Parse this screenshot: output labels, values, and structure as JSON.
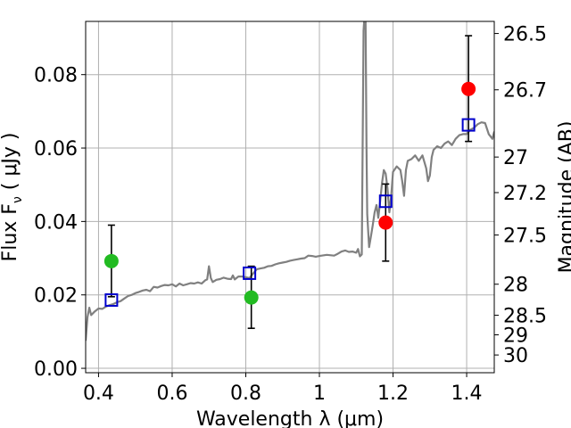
{
  "chart_data": {
    "type": "scatter",
    "xlabel": "Wavelength  λ (μm)",
    "ylabel_left": "Flux  F",
    "ylabel_left_sub": "ν",
    "ylabel_left_unit": "  ( μJy )",
    "ylabel_right": "Magnitude (AB)",
    "xlim": [
      0.365,
      1.475
    ],
    "ylim": [
      -0.0012,
      0.0945
    ],
    "x_ticks": [
      {
        "value": 0.4,
        "label": "0.4"
      },
      {
        "value": 0.6,
        "label": "0.6"
      },
      {
        "value": 0.8,
        "label": "0.8"
      },
      {
        "value": 1.0,
        "label": "1"
      },
      {
        "value": 1.2,
        "label": "1.2"
      },
      {
        "value": 1.4,
        "label": "1.4"
      }
    ],
    "y_ticks": [
      {
        "value": 0.0,
        "label": "0.00"
      },
      {
        "value": 0.02,
        "label": "0.02"
      },
      {
        "value": 0.04,
        "label": "0.04"
      },
      {
        "value": 0.06,
        "label": "0.06"
      },
      {
        "value": 0.08,
        "label": "0.08"
      }
    ],
    "mag_ticks": [
      {
        "value": 26.5,
        "label": "26.5"
      },
      {
        "value": 26.7,
        "label": "26.7"
      },
      {
        "value": 27.0,
        "label": "27"
      },
      {
        "value": 27.2,
        "label": "27.2"
      },
      {
        "value": 27.5,
        "label": "27.5"
      },
      {
        "value": 28.0,
        "label": "28"
      },
      {
        "value": 28.5,
        "label": "28.5"
      },
      {
        "value": 29.0,
        "label": "29"
      },
      {
        "value": 30.0,
        "label": "30"
      }
    ],
    "grid": true,
    "colors": {
      "spectrum": "#808080",
      "green_points": "#22bb22",
      "red_points": "#ff0000",
      "model_squares": "#0000cc",
      "errorbars": "#000000"
    },
    "spectrum": [
      [
        0.365,
        0.0075
      ],
      [
        0.37,
        0.014
      ],
      [
        0.375,
        0.0165
      ],
      [
        0.38,
        0.0145
      ],
      [
        0.39,
        0.0155
      ],
      [
        0.4,
        0.0163
      ],
      [
        0.41,
        0.0162
      ],
      [
        0.42,
        0.0168
      ],
      [
        0.43,
        0.0172
      ],
      [
        0.44,
        0.0175
      ],
      [
        0.45,
        0.018
      ],
      [
        0.46,
        0.0183
      ],
      [
        0.47,
        0.019
      ],
      [
        0.48,
        0.0197
      ],
      [
        0.49,
        0.02
      ],
      [
        0.5,
        0.0205
      ],
      [
        0.51,
        0.0208
      ],
      [
        0.52,
        0.0212
      ],
      [
        0.53,
        0.0214
      ],
      [
        0.54,
        0.021
      ],
      [
        0.55,
        0.0222
      ],
      [
        0.56,
        0.022
      ],
      [
        0.57,
        0.0224
      ],
      [
        0.58,
        0.0227
      ],
      [
        0.59,
        0.0226
      ],
      [
        0.6,
        0.0229
      ],
      [
        0.61,
        0.0223
      ],
      [
        0.62,
        0.0231
      ],
      [
        0.63,
        0.0226
      ],
      [
        0.64,
        0.0229
      ],
      [
        0.65,
        0.0232
      ],
      [
        0.66,
        0.0231
      ],
      [
        0.67,
        0.0234
      ],
      [
        0.68,
        0.0231
      ],
      [
        0.69,
        0.024
      ],
      [
        0.695,
        0.0242
      ],
      [
        0.7,
        0.0278
      ],
      [
        0.705,
        0.0246
      ],
      [
        0.71,
        0.0235
      ],
      [
        0.72,
        0.0241
      ],
      [
        0.73,
        0.0243
      ],
      [
        0.74,
        0.0247
      ],
      [
        0.75,
        0.0244
      ],
      [
        0.76,
        0.0243
      ],
      [
        0.765,
        0.0253
      ],
      [
        0.77,
        0.0242
      ],
      [
        0.78,
        0.025
      ],
      [
        0.79,
        0.025
      ],
      [
        0.8,
        0.0248
      ],
      [
        0.81,
        0.0246
      ],
      [
        0.82,
        0.0258
      ],
      [
        0.83,
        0.027
      ],
      [
        0.84,
        0.0272
      ],
      [
        0.85,
        0.0274
      ],
      [
        0.86,
        0.0278
      ],
      [
        0.87,
        0.0279
      ],
      [
        0.88,
        0.0283
      ],
      [
        0.89,
        0.0286
      ],
      [
        0.9,
        0.0288
      ],
      [
        0.91,
        0.029
      ],
      [
        0.92,
        0.0293
      ],
      [
        0.93,
        0.0295
      ],
      [
        0.94,
        0.0297
      ],
      [
        0.95,
        0.0299
      ],
      [
        0.96,
        0.03
      ],
      [
        0.97,
        0.0307
      ],
      [
        0.98,
        0.0306
      ],
      [
        0.99,
        0.0304
      ],
      [
        1.0,
        0.0306
      ],
      [
        1.02,
        0.0309
      ],
      [
        1.04,
        0.0307
      ],
      [
        1.05,
        0.0312
      ],
      [
        1.06,
        0.0318
      ],
      [
        1.07,
        0.0321
      ],
      [
        1.08,
        0.0317
      ],
      [
        1.09,
        0.0318
      ],
      [
        1.1,
        0.0315
      ],
      [
        1.105,
        0.0325
      ],
      [
        1.11,
        0.0305
      ],
      [
        1.115,
        0.031
      ],
      [
        1.12,
        0.092
      ],
      [
        1.125,
        0.1
      ],
      [
        1.128,
        0.06
      ],
      [
        1.13,
        0.042
      ],
      [
        1.135,
        0.033
      ],
      [
        1.14,
        0.036
      ],
      [
        1.145,
        0.039
      ],
      [
        1.15,
        0.0425
      ],
      [
        1.155,
        0.0445
      ],
      [
        1.16,
        0.041
      ],
      [
        1.165,
        0.0455
      ],
      [
        1.17,
        0.0505
      ],
      [
        1.175,
        0.054
      ],
      [
        1.18,
        0.053
      ],
      [
        1.185,
        0.049
      ],
      [
        1.19,
        0.0425
      ],
      [
        1.195,
        0.047
      ],
      [
        1.2,
        0.0535
      ],
      [
        1.21,
        0.055
      ],
      [
        1.22,
        0.054
      ],
      [
        1.225,
        0.051
      ],
      [
        1.23,
        0.047
      ],
      [
        1.235,
        0.054
      ],
      [
        1.24,
        0.0565
      ],
      [
        1.25,
        0.057
      ],
      [
        1.26,
        0.058
      ],
      [
        1.27,
        0.0565
      ],
      [
        1.28,
        0.058
      ],
      [
        1.29,
        0.0545
      ],
      [
        1.295,
        0.051
      ],
      [
        1.3,
        0.0525
      ],
      [
        1.305,
        0.0575
      ],
      [
        1.31,
        0.0595
      ],
      [
        1.32,
        0.0605
      ],
      [
        1.33,
        0.06
      ],
      [
        1.34,
        0.0612
      ],
      [
        1.35,
        0.0618
      ],
      [
        1.36,
        0.0608
      ],
      [
        1.37,
        0.0625
      ],
      [
        1.38,
        0.0635
      ],
      [
        1.39,
        0.0638
      ],
      [
        1.4,
        0.0638
      ],
      [
        1.41,
        0.065
      ],
      [
        1.42,
        0.0655
      ],
      [
        1.43,
        0.0665
      ],
      [
        1.44,
        0.067
      ],
      [
        1.45,
        0.0668
      ],
      [
        1.46,
        0.0638
      ],
      [
        1.47,
        0.0625
      ],
      [
        1.475,
        0.0645
      ]
    ],
    "observed_points": [
      {
        "x": 0.435,
        "y": 0.0292,
        "err_low": 0.0097,
        "err_high": 0.0098,
        "color": "green"
      },
      {
        "x": 0.815,
        "y": 0.0193,
        "err_low": 0.0084,
        "err_high": 0.0085,
        "color": "green"
      },
      {
        "x": 1.18,
        "y": 0.0397,
        "err_low": 0.0105,
        "err_high": 0.0105,
        "color": "red"
      },
      {
        "x": 1.405,
        "y": 0.0761,
        "err_low": 0.0143,
        "err_high": 0.0145,
        "color": "red"
      }
    ],
    "model_points": [
      {
        "x": 0.435,
        "y": 0.0186
      },
      {
        "x": 0.81,
        "y": 0.0259
      },
      {
        "x": 1.18,
        "y": 0.0455
      },
      {
        "x": 1.405,
        "y": 0.0663
      }
    ]
  }
}
